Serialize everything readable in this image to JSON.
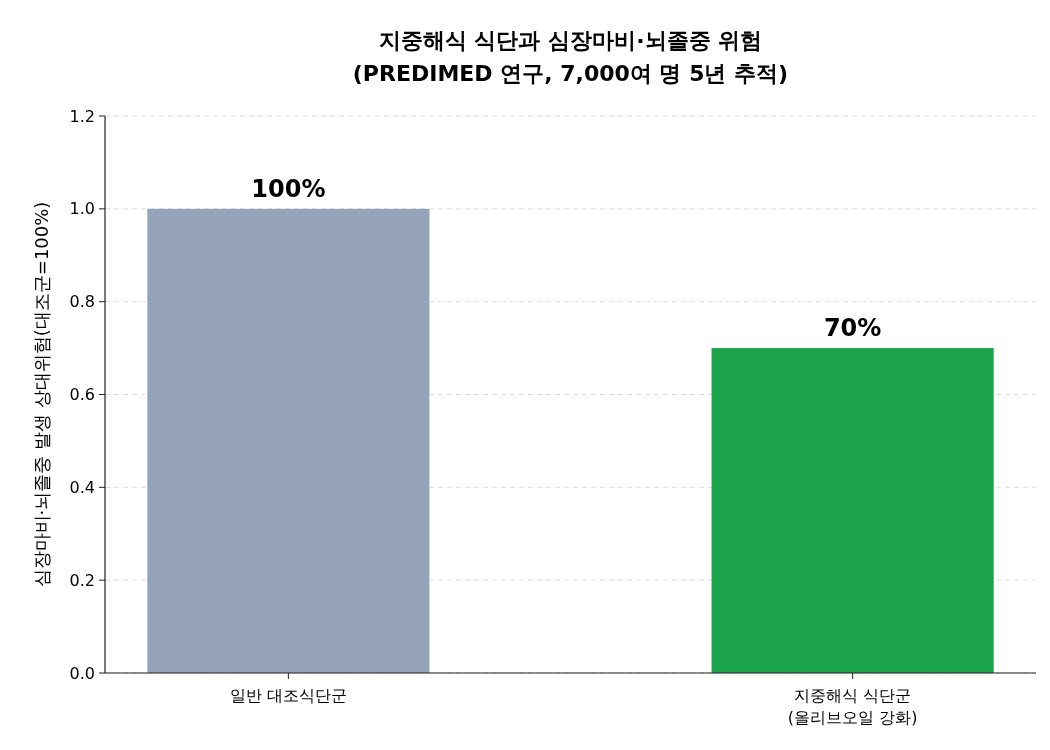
{
  "chart_data": {
    "type": "bar",
    "title": "지중해식 식단과 심장마비·뇌졸중 위험\n(PREDIMED 연구, 7,000여 명 5년 추적)",
    "ylabel": "심장마비·뇌졸중 발생 상대위험(대조군=100%)",
    "categories": [
      "일반 대조식단군",
      "지중해식 식단군\n(올리브오일 강화)"
    ],
    "values": [
      1.0,
      0.7
    ],
    "colors": [
      "#94a3b8",
      "#1aa34a"
    ],
    "value_labels": [
      "100%",
      "70%"
    ],
    "ylim": [
      0,
      1.2
    ],
    "yticks": [
      {
        "value": 0,
        "label": "0.0"
      },
      {
        "value": 0.2,
        "label": "0.2"
      },
      {
        "value": 0.4,
        "label": "0.4"
      },
      {
        "value": 0.6,
        "label": "0.6"
      },
      {
        "value": 0.8,
        "label": "0.8"
      },
      {
        "value": 1,
        "label": "1.0"
      },
      {
        "value": 1.2,
        "label": "1.2"
      }
    ],
    "grid": "y"
  }
}
